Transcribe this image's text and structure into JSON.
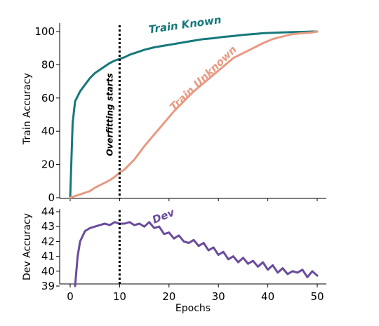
{
  "chart_data": [
    {
      "type": "line",
      "ylabel": "Train Accuracy",
      "xlim": [
        0,
        50
      ],
      "ylim": [
        0,
        100
      ],
      "yticks": [
        "0",
        "20",
        "40",
        "60",
        "80",
        "100"
      ],
      "x": [
        0,
        0.5,
        1,
        2,
        3,
        4,
        5,
        6,
        7,
        8,
        9,
        10,
        11,
        12,
        13,
        14,
        15,
        17,
        19,
        21,
        23,
        25,
        27,
        29,
        31,
        33,
        35,
        37,
        39,
        41,
        43,
        45,
        47,
        49,
        50
      ],
      "series": [
        {
          "name": "Train Known",
          "color": "#16787a",
          "values": [
            0,
            45,
            58,
            64,
            68,
            72,
            75,
            77,
            79,
            81,
            82.5,
            83.5,
            84.5,
            86,
            87,
            88,
            89,
            90.5,
            91.5,
            92.5,
            93.5,
            94.5,
            95.5,
            96,
            96.8,
            97.3,
            98,
            98.5,
            99,
            99.3,
            99.5,
            99.7,
            99.8,
            100,
            100
          ]
        },
        {
          "name": "Train Unknown",
          "color": "#e89a82",
          "values": [
            0,
            0.5,
            1,
            2,
            3,
            4,
            6,
            7.5,
            9,
            10.5,
            12.5,
            15,
            17,
            20,
            23,
            27,
            31,
            38,
            45,
            52,
            58,
            64,
            69,
            74,
            79,
            84,
            87,
            90,
            93,
            95.5,
            97,
            98.5,
            99,
            99.5,
            100
          ]
        }
      ],
      "annotation": "Overfitting starts",
      "vline_x": 10
    },
    {
      "type": "line",
      "ylabel": "Dev Accuracy",
      "xlabel": "Epochs",
      "xlim": [
        0,
        50
      ],
      "ylim": [
        39,
        44
      ],
      "yticks": [
        "39",
        "40",
        "41",
        "42",
        "43",
        "44"
      ],
      "xticks": [
        "0",
        "10",
        "20",
        "30",
        "40",
        "50"
      ],
      "x": [
        1,
        1.5,
        2,
        3,
        4,
        5,
        6,
        7,
        8,
        9,
        10,
        11,
        12,
        13,
        14,
        15,
        16,
        17,
        18,
        19,
        20,
        21,
        22,
        23,
        24,
        25,
        26,
        27,
        28,
        29,
        30,
        31,
        32,
        33,
        34,
        35,
        36,
        37,
        38,
        39,
        40,
        41,
        42,
        43,
        44,
        45,
        46,
        47,
        48,
        49,
        50
      ],
      "series": [
        {
          "name": "Dev",
          "color": "#6a4c9c",
          "values": [
            39,
            41,
            42,
            42.7,
            42.9,
            43,
            43.1,
            43.2,
            43.1,
            43.3,
            43.2,
            43.2,
            43.3,
            43.1,
            43.2,
            43,
            43.3,
            42.9,
            43,
            42.5,
            42.6,
            42.2,
            42.4,
            42,
            41.9,
            42.1,
            41.7,
            41.9,
            41.4,
            41.6,
            41.1,
            41.3,
            40.8,
            41,
            40.6,
            40.9,
            40.5,
            40.7,
            40.3,
            40.6,
            40.1,
            40.4,
            39.9,
            40.2,
            39.8,
            40,
            39.9,
            40.1,
            39.6,
            40,
            39.7
          ]
        }
      ],
      "vline_x": 10
    }
  ]
}
